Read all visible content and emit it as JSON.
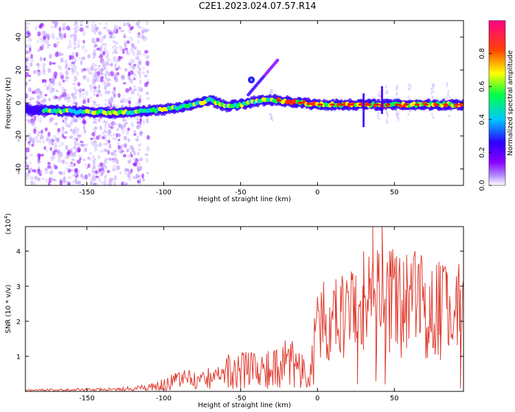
{
  "title": "C2E1.2023.024.07.57.R14",
  "colors": {
    "snr_line": "#e03a2e",
    "axis": "#000000",
    "background": "#ffffff"
  },
  "chart_data": [
    {
      "type": "heatmap",
      "xlabel": "Height of straight line (km)",
      "ylabel": "Frequency (Hz)",
      "xlim": [
        -190,
        95
      ],
      "ylim": [
        -50,
        50
      ],
      "xticks": [
        -150,
        -100,
        -50,
        0,
        50
      ],
      "xtick_labels": [
        "-150",
        "-100",
        "-50",
        "0",
        "50"
      ],
      "yticks": [
        -40,
        -20,
        0,
        20,
        40
      ],
      "ytick_labels": [
        "-40",
        "-20",
        "0",
        "20",
        "40"
      ],
      "colorbar": {
        "label": "Normalized spectral amplitude",
        "range": [
          0,
          1
        ],
        "ticks": [
          0.0,
          0.2,
          0.4,
          0.6,
          0.8
        ],
        "tick_labels": [
          "0.0",
          "0.2",
          "0.4",
          "0.6",
          "0.8"
        ],
        "colormap": [
          "#ffffff",
          "#8a00ff",
          "#2a00ff",
          "#00c8ff",
          "#00ff44",
          "#ffff00",
          "#ff0000",
          "#ff0088"
        ]
      },
      "ridge": {
        "description_points_x": [
          -190,
          -160,
          -130,
          -100,
          -80,
          -70,
          -60,
          -50,
          -40,
          -30,
          -20,
          -10,
          0,
          20,
          40,
          60,
          80,
          95
        ],
        "description_points_y": [
          -4,
          -5,
          -6,
          -4,
          -1,
          2,
          -2,
          -1,
          1,
          2,
          1,
          0,
          -1,
          -1,
          -1,
          -1,
          -1,
          -1
        ]
      }
    },
    {
      "type": "line",
      "xlabel": "Height of straight line (km)",
      "ylabel": "SNR (10 * v/v)",
      "y_multiplier": "(x10",
      "y_multiplier_exp": "4",
      "y_multiplier_close": ")",
      "xlim": [
        -190,
        95
      ],
      "ylim": [
        0,
        4.7
      ],
      "xticks": [
        -150,
        -100,
        -50,
        0,
        50
      ],
      "xtick_labels": [
        "-150",
        "-100",
        "-50",
        "0",
        "50"
      ],
      "yticks": [
        1,
        2,
        3,
        4
      ],
      "ytick_labels": [
        "1",
        "2",
        "3",
        "4"
      ],
      "series": [
        {
          "x": [
            -190,
            -170,
            -150,
            -130,
            -120,
            -110,
            -105,
            -100,
            -95,
            -90,
            -85,
            -80,
            -75,
            -70,
            -65,
            -60,
            -55,
            -50,
            -45,
            -40,
            -35,
            -30,
            -25,
            -20,
            -15,
            -10,
            -5,
            0,
            5,
            10,
            15,
            20,
            25,
            30,
            35,
            40,
            45,
            50,
            55,
            60,
            65,
            70,
            75,
            80,
            85,
            90,
            95
          ],
          "y": [
            0.03,
            0.04,
            0.05,
            0.06,
            0.08,
            0.12,
            0.15,
            0.2,
            0.25,
            0.3,
            0.35,
            0.3,
            0.32,
            0.4,
            0.45,
            0.5,
            0.55,
            0.6,
            0.65,
            0.55,
            0.6,
            0.6,
            0.7,
            0.8,
            0.75,
            0.6,
            0.7,
            1.9,
            2.0,
            1.8,
            2.2,
            2.0,
            2.4,
            2.2,
            2.6,
            2.5,
            2.4,
            2.8,
            2.2,
            2.4,
            2.6,
            2.3,
            2.2,
            2.5,
            2.1,
            2.3,
            2.4
          ],
          "peaks": [
            [
              -32,
              1.15
            ],
            [
              -48,
              0.9
            ],
            [
              -58,
              1.05
            ],
            [
              -92,
              0.5
            ],
            [
              -10,
              1.05
            ],
            [
              -15,
              0.8
            ],
            [
              -20,
              1.0
            ],
            [
              8,
              2.4
            ],
            [
              12,
              3.2
            ],
            [
              15,
              3.0
            ],
            [
              25,
              2.3
            ],
            [
              30,
              4.0
            ],
            [
              34,
              3.2
            ],
            [
              36,
              4.7
            ],
            [
              40,
              3.5
            ],
            [
              42,
              4.7
            ],
            [
              47,
              4.0
            ],
            [
              48,
              3.5
            ],
            [
              56,
              3.7
            ],
            [
              58,
              3.9
            ],
            [
              62,
              3.1
            ],
            [
              67,
              3.5
            ],
            [
              70,
              3.1
            ],
            [
              73,
              3.0
            ],
            [
              80,
              2.8
            ],
            [
              84,
              3.4
            ],
            [
              90,
              2.8
            ],
            [
              95,
              3.8
            ]
          ],
          "dips": [
            [
              26,
              0.2
            ],
            [
              38,
              0.3
            ],
            [
              44,
              0.2
            ],
            [
              48,
              1.5
            ],
            [
              80,
              0.9
            ],
            [
              93,
              0.1
            ]
          ]
        }
      ]
    }
  ]
}
